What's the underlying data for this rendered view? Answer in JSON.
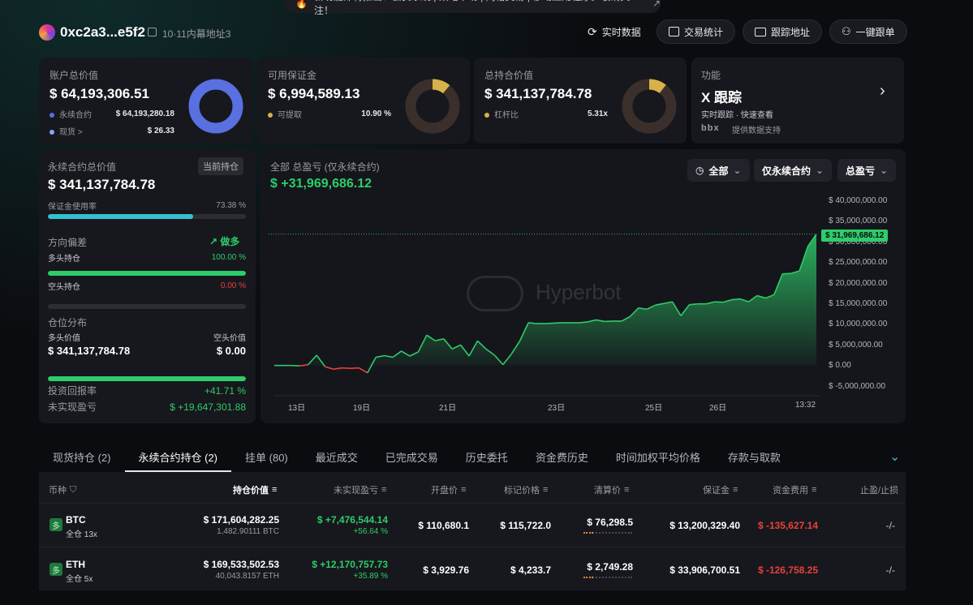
{
  "banner": {
    "text": "新功能即将推出：会员系统 | 策略市场 | 网格交易 | 移动应用程序。敬请关注！"
  },
  "header": {
    "address": "0xc2a3...e5f2",
    "address_label": "10·11内幕地址3",
    "buttons": [
      {
        "label": "实时数据",
        "icon": "refresh-icon"
      },
      {
        "label": "交易统计",
        "icon": "stats-icon"
      },
      {
        "label": "跟踪地址",
        "icon": "monitor-icon"
      },
      {
        "label": "一键跟单",
        "icon": "copy-trade-icon"
      }
    ]
  },
  "cards": {
    "account": {
      "title": "账户总价值",
      "value": "$ 64,193,306.51",
      "rows": [
        {
          "label": "永续合约",
          "value": "$ 64,193,280.18",
          "color": "#5a6fe0"
        },
        {
          "label": "现货 >",
          "value": "$ 26.33",
          "color": "#8fa2ff"
        }
      ],
      "donut_fraction": 0.9999
    },
    "margin": {
      "title": "可用保证金",
      "value": "$ 6,994,589.13",
      "row_label": "可提取",
      "row_value": "10.90 %",
      "donut_fraction": 0.109
    },
    "holdings": {
      "title": "总持合价值",
      "value": "$ 341,137,784.78",
      "row_label": "杠杆比",
      "row_value": "5.31x",
      "donut_fraction": 0.106
    },
    "feature": {
      "title": "功能",
      "name": "X 跟踪",
      "desc": "实时跟踪 · 快速查看",
      "provider_logo": "bbx",
      "provider_text": "提供数据支持"
    }
  },
  "perp": {
    "title": "永续合约总价值",
    "badge": "当前持仓",
    "value": "$ 341,137,784.78",
    "margin_usage_label": "保证金使用率",
    "margin_usage_value": "73.38 %",
    "margin_usage_fraction": 0.7338,
    "direction_label": "方向偏差",
    "direction_value": "做多",
    "long_label": "多头持仓",
    "long_value": "100.00 %",
    "long_fraction": 1.0,
    "short_label": "空头持仓",
    "short_value": "0.00 %",
    "short_fraction": 0.0,
    "distribution_label": "仓位分布",
    "long_val_label": "多头价值",
    "short_val_label": "空头价值",
    "long_val": "$ 341,137,784.78",
    "short_val": "$ 0.00",
    "roi_label": "投资回报率",
    "roi_value": "+41.71 %",
    "upnl_label": "未实现盈亏",
    "upnl_value": "$ +19,647,301.88"
  },
  "chart_panel": {
    "title": "全部 总盈亏 (仅永续合约)",
    "value": "$ +31,969,686.12",
    "filters": [
      "全部",
      "仅永续合约",
      "总盈亏"
    ],
    "watermark": "Hyperbot",
    "current_label": "$ 31,969,686.12"
  },
  "chart_data": {
    "type": "area",
    "title": "全部 总盈亏 (仅永续合约)",
    "x_ticks": [
      "13日",
      "19日",
      "21日",
      "23日",
      "25日",
      "26日",
      "13:32"
    ],
    "y_ticks": [
      "$ 40,000,000.00",
      "$ 35,000,000.00",
      "$ 30,000,000.00",
      "$ 25,000,000.00",
      "$ 20,000,000.00",
      "$ 15,000,000.00",
      "$ 10,000,000.00",
      "$ 5,000,000.00",
      "$ 0.00",
      "$ -5,000,000.00"
    ],
    "ylim": [
      -5000000,
      40000000
    ],
    "values": [
      0,
      0,
      0,
      -100000,
      200000,
      2500000,
      -300000,
      -900000,
      -600000,
      -700000,
      -600000,
      -1800000,
      2000000,
      2400000,
      2000000,
      3500000,
      2300000,
      3300000,
      7400000,
      6000000,
      6500000,
      4000000,
      5000000,
      2300000,
      6000000,
      4000000,
      2500000,
      200000,
      2800000,
      6000000,
      10400000,
      10200000,
      10200000,
      10300000,
      10400000,
      10400000,
      10400000,
      10600000,
      11100000,
      10700000,
      10800000,
      10800000,
      11900000,
      14000000,
      13700000,
      14700000,
      15100000,
      15500000,
      12100000,
      14800000,
      15000000,
      15000000,
      15500000,
      15400000,
      16000000,
      16200000,
      15500000,
      17000000,
      16400000,
      17200000,
      22300000,
      22400000,
      23000000,
      29000000,
      31969686
    ],
    "series": [
      {
        "values_color_note": "green above 0, red below 0"
      }
    ]
  },
  "tabs": [
    "现货持仓 (2)",
    "永续合约持仓 (2)",
    "挂单 (80)",
    "最近成交",
    "已完成交易",
    "历史委托",
    "资金费历史",
    "时间加权平均价格",
    "存款与取款"
  ],
  "table": {
    "headers": [
      "币种",
      "持仓价值",
      "未实现盈亏",
      "开盘价",
      "标记价格",
      "清算价",
      "保证金",
      "资金费用",
      "止盈/止损"
    ],
    "rows": [
      {
        "coin": "BTC",
        "mode": "全仓 13x",
        "value": "$ 171,604,282.25",
        "size": "1,482.90111 BTC",
        "upnl": "$ +7,476,544.14",
        "upnl_pct": "+56.64 %",
        "entry": "$ 110,680.1",
        "mark": "$ 115,722.0",
        "liq": "$ 76,298.5",
        "margin": "$ 13,200,329.40",
        "funding": "$ -135,627.14",
        "tpsl": "-/-"
      },
      {
        "coin": "ETH",
        "mode": "全仓 5x",
        "value": "$ 169,533,502.53",
        "size": "40,043.8157 ETH",
        "upnl": "$ +12,170,757.73",
        "upnl_pct": "+35.89 %",
        "entry": "$ 3,929.76",
        "mark": "$ 4,233.7",
        "liq": "$ 2,749.28",
        "margin": "$ 33,906,700.51",
        "funding": "$ -126,758.25",
        "tpsl": "-/-"
      }
    ],
    "coin_badge": "多"
  }
}
